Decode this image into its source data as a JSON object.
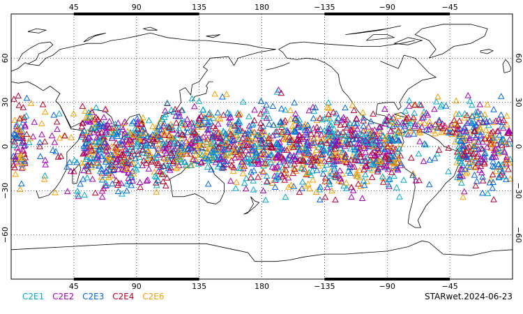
{
  "map": {
    "projection": "cylindrical equidistant, centered at 180",
    "lon_range": [
      0,
      360
    ],
    "lat_range": [
      -90,
      90
    ],
    "lon_ticks": [
      {
        "lon": 45,
        "label": "45"
      },
      {
        "lon": 90,
        "label": "90"
      },
      {
        "lon": 135,
        "label": "135"
      },
      {
        "lon": 180,
        "label": "180"
      },
      {
        "lon": 225,
        "label": "−135"
      },
      {
        "lon": 270,
        "label": "−90"
      },
      {
        "lon": 315,
        "label": "−45"
      }
    ],
    "lat_ticks": [
      {
        "lat": 60,
        "label": "60"
      },
      {
        "lat": 30,
        "label": "30"
      },
      {
        "lat": 0,
        "label": "0"
      },
      {
        "lat": -30,
        "label": "−30"
      },
      {
        "lat": -60,
        "label": "−60"
      }
    ],
    "grid": "dotted",
    "coastlines": true
  },
  "chart_data": {
    "type": "scatter",
    "marker": "open triangle",
    "coverage_lat": [
      -42,
      42
    ],
    "series": [
      {
        "name": "C2E1",
        "color": "#00aac8"
      },
      {
        "name": "C2E2",
        "color": "#a000b4"
      },
      {
        "name": "C2E3",
        "color": "#0064dc"
      },
      {
        "name": "C2E4",
        "color": "#b40028"
      },
      {
        "name": "C2E6",
        "color": "#f0a000"
      }
    ]
  },
  "legend": {
    "items": [
      {
        "label": "C2E1",
        "color": "#00aac8"
      },
      {
        "label": "C2E2",
        "color": "#a000b4"
      },
      {
        "label": "C2E3",
        "color": "#0064dc"
      },
      {
        "label": "C2E4",
        "color": "#b40028"
      },
      {
        "label": "C2E6",
        "color": "#f0a000"
      }
    ]
  },
  "product_label": "STARwet.2024-06-23"
}
